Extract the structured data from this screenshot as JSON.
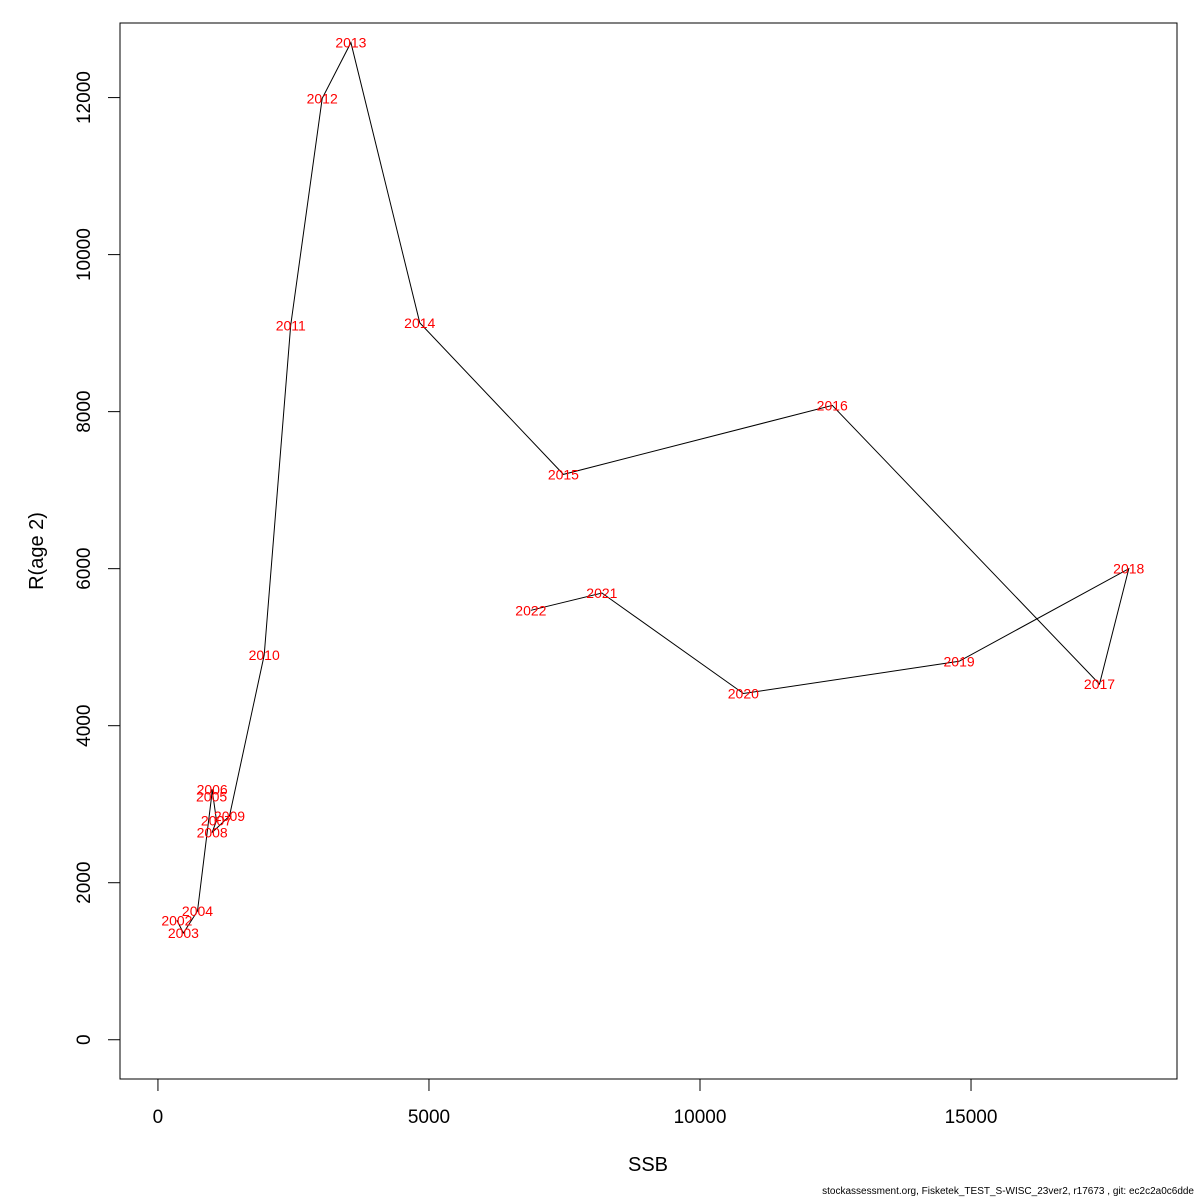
{
  "chart_data": {
    "type": "line",
    "xlabel": "SSB",
    "ylabel": "R(age 2)",
    "xlim": [
      -700,
      18800
    ],
    "ylim": [
      -500,
      12950
    ],
    "xticks": [
      0,
      5000,
      10000,
      15000
    ],
    "yticks": [
      0,
      2000,
      4000,
      6000,
      8000,
      10000,
      12000
    ],
    "grid": false,
    "line_color": "#000000",
    "label_color": "#ff0000",
    "points": [
      {
        "label": "2002",
        "x": 350,
        "y": 1520
      },
      {
        "label": "2003",
        "x": 470,
        "y": 1360
      },
      {
        "label": "2004",
        "x": 730,
        "y": 1640
      },
      {
        "label": "2005",
        "x": 990,
        "y": 3100
      },
      {
        "label": "2006",
        "x": 1000,
        "y": 3190
      },
      {
        "label": "2007",
        "x": 1080,
        "y": 2790
      },
      {
        "label": "2008",
        "x": 1000,
        "y": 2640
      },
      {
        "label": "2009",
        "x": 1320,
        "y": 2850
      },
      {
        "label": "2010",
        "x": 1960,
        "y": 4900
      },
      {
        "label": "2011",
        "x": 2450,
        "y": 9100
      },
      {
        "label": "2012",
        "x": 3030,
        "y": 11990
      },
      {
        "label": "2013",
        "x": 3560,
        "y": 12700
      },
      {
        "label": "2014",
        "x": 4830,
        "y": 9130
      },
      {
        "label": "2015",
        "x": 7480,
        "y": 7200
      },
      {
        "label": "2016",
        "x": 12440,
        "y": 8080
      },
      {
        "label": "2017",
        "x": 17370,
        "y": 4530
      },
      {
        "label": "2018",
        "x": 17910,
        "y": 6000
      },
      {
        "label": "2019",
        "x": 14780,
        "y": 4820
      },
      {
        "label": "2020",
        "x": 10800,
        "y": 4410
      },
      {
        "label": "2021",
        "x": 8190,
        "y": 5690
      },
      {
        "label": "2022",
        "x": 6880,
        "y": 5470
      }
    ]
  },
  "footer": "stockassessment.org, Fisketek_TEST_S-WISC_23ver2, r17673 , git: ec2c2a0c6dde"
}
